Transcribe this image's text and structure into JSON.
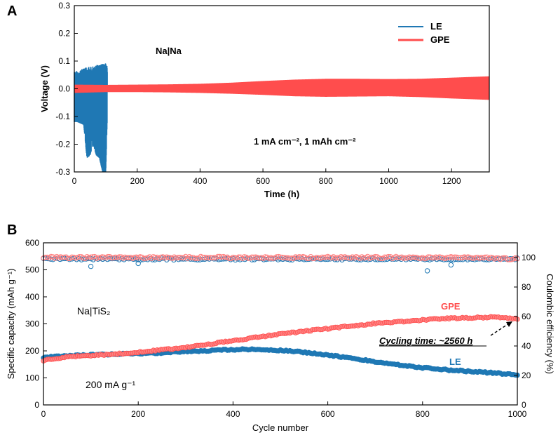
{
  "colors": {
    "le": "#1f78b4",
    "gpe": "#ff4d4d",
    "gpe_light": "#ff8080"
  },
  "chart_data": [
    {
      "panel": "A",
      "type": "line",
      "xlabel": "Time (h)",
      "ylabel": "Voltage (V)",
      "xlim": [
        0,
        1320
      ],
      "ylim": [
        -0.3,
        0.3
      ],
      "xticks": [
        "0",
        "200",
        "400",
        "600",
        "800",
        "1000",
        "1200"
      ],
      "yticks": [
        "-0.3",
        "-0.2",
        "-0.1",
        "0.0",
        "0.1",
        "0.2",
        "0.3"
      ],
      "legend": [
        "LE",
        "GPE"
      ],
      "legend_position": "top-right",
      "annotations": {
        "cell": "Na|Na",
        "condition": "1 mA cm⁻², 1 mAh cm⁻²"
      },
      "series": [
        {
          "name": "LE",
          "type": "band",
          "x": [
            0,
            10,
            20,
            30,
            40,
            50,
            60,
            70,
            80,
            90,
            100,
            105
          ],
          "upper": [
            0.06,
            0.065,
            0.07,
            0.075,
            0.078,
            0.08,
            0.082,
            0.085,
            0.088,
            0.09,
            0.092,
            0.08
          ],
          "lower": [
            -0.12,
            -0.12,
            -0.125,
            -0.13,
            -0.25,
            -0.24,
            -0.2,
            -0.24,
            -0.25,
            -0.3,
            -0.3,
            -0.1
          ]
        },
        {
          "name": "GPE",
          "type": "band",
          "x": [
            0,
            100,
            200,
            300,
            400,
            500,
            600,
            700,
            800,
            900,
            1000,
            1100,
            1200,
            1320
          ],
          "upper": [
            0.015,
            0.014,
            0.015,
            0.016,
            0.018,
            0.022,
            0.028,
            0.033,
            0.036,
            0.036,
            0.035,
            0.036,
            0.04,
            0.045
          ],
          "lower": [
            -0.015,
            -0.012,
            -0.012,
            -0.013,
            -0.015,
            -0.018,
            -0.022,
            -0.027,
            -0.029,
            -0.028,
            -0.027,
            -0.03,
            -0.035,
            -0.04
          ]
        }
      ]
    },
    {
      "panel": "B",
      "type": "scatter",
      "xlabel": "Cycle number",
      "ylabel_left": "Specific capacity (mAh g⁻¹)",
      "ylabel_right": "Coulombic efficiency (%)",
      "xlim": [
        0,
        1000
      ],
      "ylim_left": [
        0,
        600
      ],
      "ylim_right": [
        0,
        110
      ],
      "xticks": [
        "0",
        "200",
        "400",
        "600",
        "800",
        "1000"
      ],
      "yticks_left": [
        "0",
        "100",
        "200",
        "300",
        "400",
        "500",
        "600"
      ],
      "yticks_right": [
        "0",
        "20",
        "40",
        "60",
        "80",
        "100"
      ],
      "annotations": {
        "cell": "Na|TiS₂",
        "rate": "200 mA g⁻¹",
        "gpe_label": "GPE",
        "le_label": "LE",
        "cycling_time": "Cycling time: ~2560 h"
      },
      "series": [
        {
          "name": "GPE",
          "axis": "left",
          "x": [
            0,
            50,
            100,
            150,
            200,
            250,
            300,
            350,
            400,
            450,
            500,
            550,
            600,
            650,
            700,
            750,
            800,
            850,
            900,
            950,
            1000
          ],
          "y": [
            165,
            178,
            183,
            188,
            195,
            203,
            213,
            225,
            238,
            250,
            262,
            273,
            282,
            292,
            302,
            308,
            315,
            320,
            322,
            325,
            318
          ]
        },
        {
          "name": "LE",
          "axis": "left",
          "x": [
            0,
            50,
            100,
            150,
            200,
            250,
            300,
            350,
            400,
            450,
            500,
            550,
            600,
            650,
            700,
            750,
            800,
            850,
            900,
            950,
            1000
          ],
          "y": [
            175,
            182,
            185,
            188,
            190,
            193,
            197,
            201,
            205,
            206,
            202,
            195,
            185,
            172,
            160,
            148,
            138,
            130,
            124,
            118,
            112
          ]
        },
        {
          "name": "GPE",
          "axis": "right",
          "label": "CE",
          "x": [
            0,
            100,
            200,
            300,
            400,
            500,
            600,
            700,
            800,
            900,
            1000
          ],
          "y": [
            100,
            100,
            100,
            100,
            100,
            100,
            100,
            100,
            100,
            100,
            99
          ]
        },
        {
          "name": "LE",
          "axis": "right",
          "label": "CE",
          "outliers_x": [
            100,
            200,
            810,
            860
          ],
          "outliers_y": [
            94,
            96,
            91,
            95
          ],
          "x": [
            0,
            100,
            200,
            300,
            400,
            500,
            600,
            700,
            800,
            900,
            1000
          ],
          "y": [
            99,
            99,
            99,
            99,
            99,
            99,
            99,
            99,
            99,
            99,
            99
          ]
        }
      ]
    }
  ]
}
